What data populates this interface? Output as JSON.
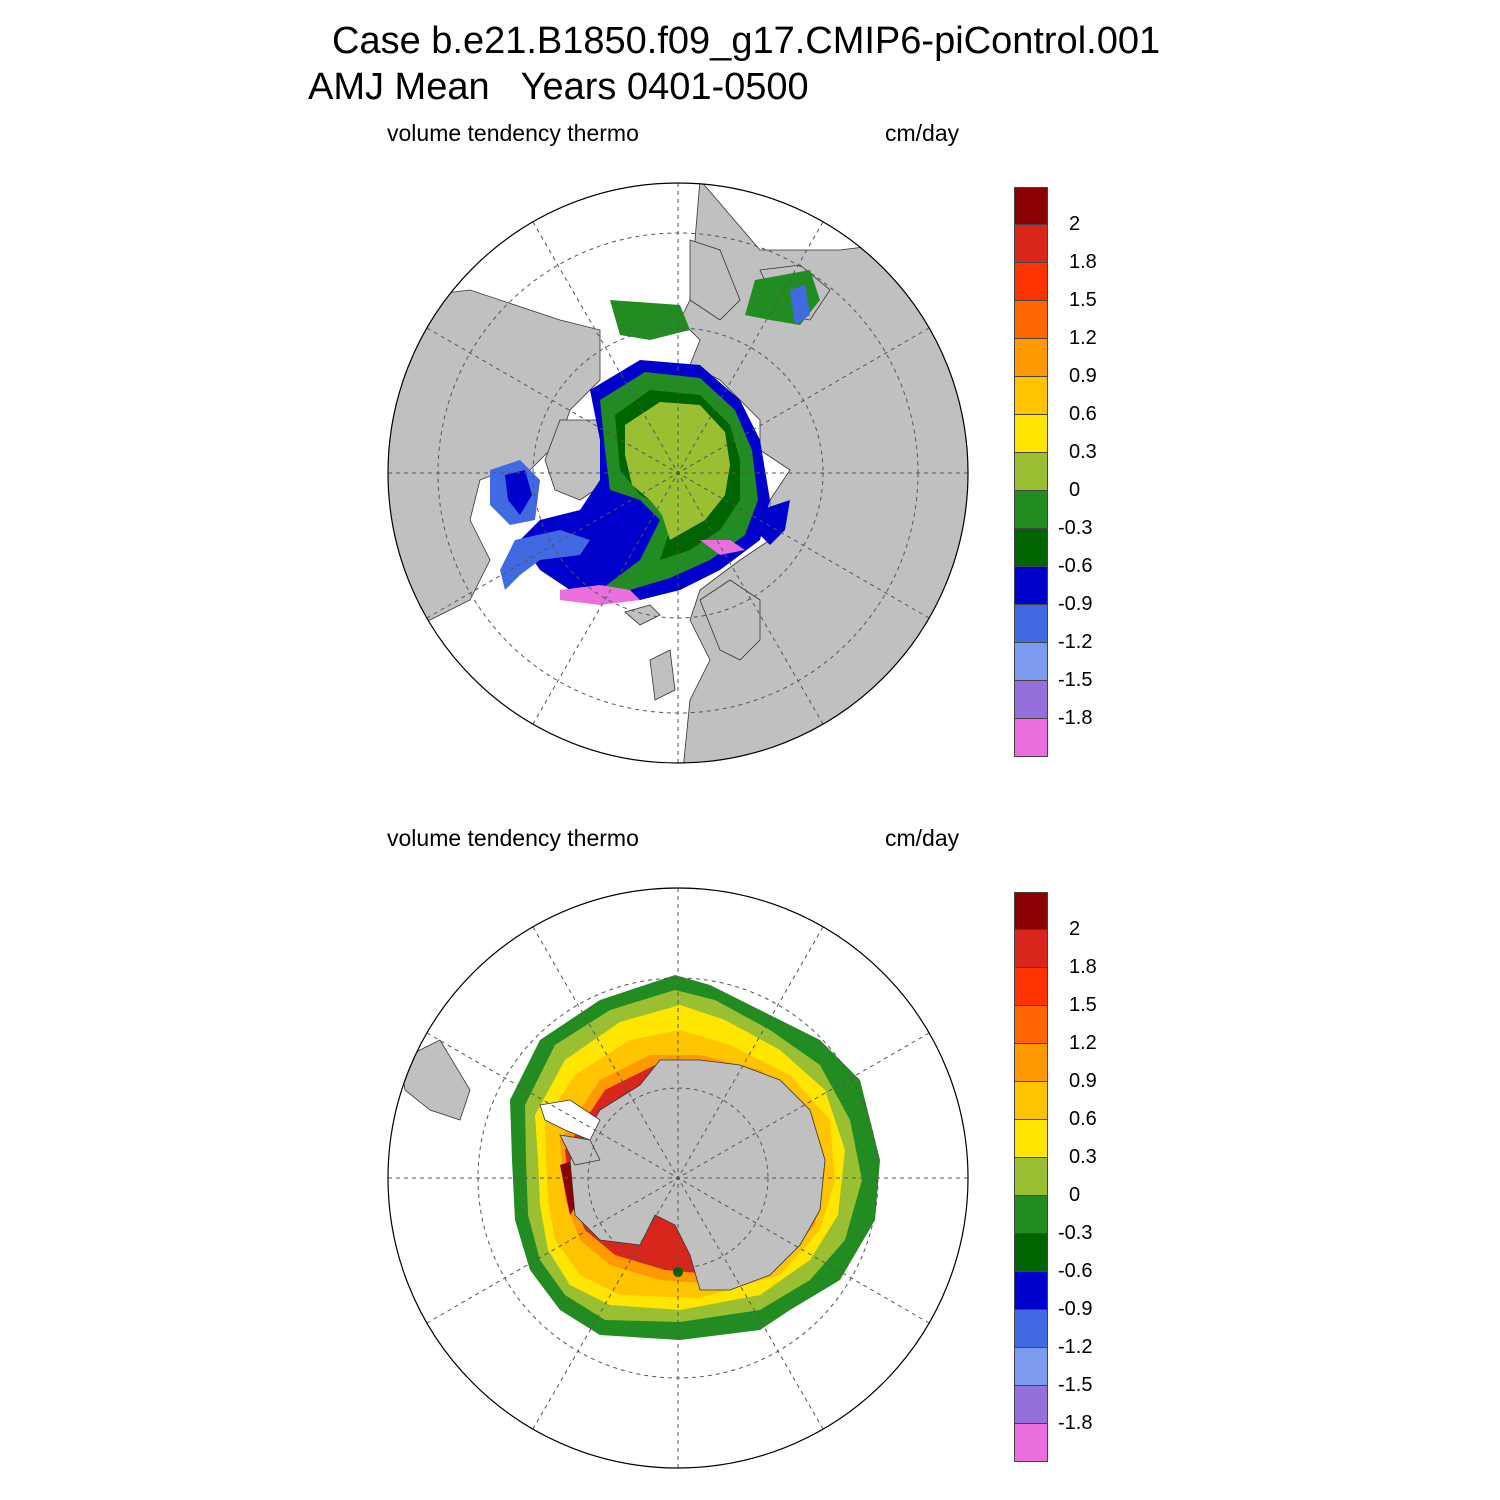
{
  "figure": {
    "title_line1": "Case b.e21.B1850.f09_g17.CMIP6-piControl.001",
    "title_line2": "AMJ Mean   Years 0401-0500"
  },
  "panels": [
    {
      "id": "north",
      "hemisphere": "Northern Hemisphere (polar stereographic)",
      "left_label": "volume tendency thermo",
      "right_label": "cm/day"
    },
    {
      "id": "south",
      "hemisphere": "Southern Hemisphere (polar stereographic)",
      "left_label": "volume tendency thermo",
      "right_label": "cm/day"
    }
  ],
  "colorbar": {
    "tick_labels": [
      "2",
      "1.8",
      "1.5",
      "1.2",
      "0.9",
      "0.6",
      "0.3",
      "0",
      "-0.3",
      "-0.6",
      "-0.9",
      "-1.2",
      "-1.5",
      "-1.8"
    ],
    "colors": [
      "#8b0000",
      "#d9261c",
      "#ff3300",
      "#ff6600",
      "#ff9900",
      "#ffc400",
      "#ffe600",
      "#9abf32",
      "#228b22",
      "#006400",
      "#0000cd",
      "#4169e1",
      "#7b9af0",
      "#9370db",
      "#e86fdc"
    ]
  },
  "map_colors": {
    "land": "#c0c0c0",
    "ocean_no_ice": "#ffffff"
  }
}
